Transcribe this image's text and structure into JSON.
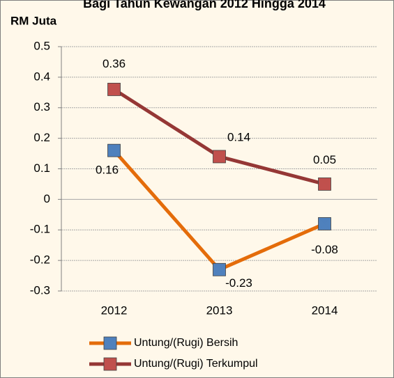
{
  "chart_data": {
    "type": "line",
    "title": "Bagi Tahun Kewangan 2012 Hingga 2014",
    "y_label": "RM Juta",
    "categories": [
      "2012",
      "2013",
      "2014"
    ],
    "series": [
      {
        "name": "Untung/(Rugi) Bersih",
        "color": "#e46c0a",
        "marker_color": "#4f81bd",
        "values": [
          0.16,
          -0.23,
          -0.08
        ]
      },
      {
        "name": "Untung/(Rugi) Terkumpul",
        "color": "#953735",
        "marker_color": "#c0504d",
        "values": [
          0.36,
          0.14,
          0.05
        ]
      }
    ],
    "ylim": [
      -0.3,
      0.5
    ],
    "yticks": [
      -0.3,
      -0.2,
      -0.1,
      0,
      0.1,
      0.2,
      0.3,
      0.4,
      0.5
    ],
    "grid": true,
    "legend": "bottom"
  }
}
